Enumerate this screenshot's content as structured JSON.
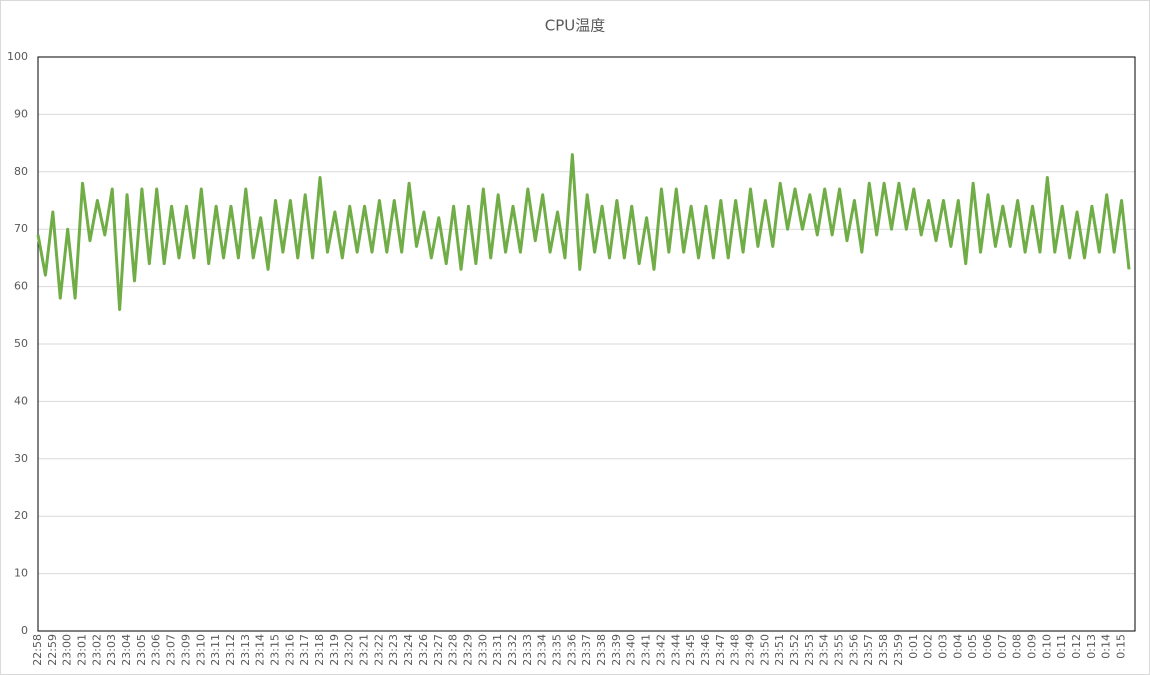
{
  "chart_data": {
    "type": "line",
    "title": "CPU温度",
    "categories": [
      "22:58",
      null,
      "22:59",
      null,
      "23:00",
      null,
      "23:01",
      null,
      "23:02",
      null,
      "23:03",
      null,
      "23:04",
      null,
      "23:05",
      null,
      "23:06",
      null,
      "23:07",
      null,
      "23:09",
      null,
      "23:10",
      null,
      "23:11",
      null,
      "23:12",
      null,
      "23:13",
      null,
      "23:14",
      null,
      "23:15",
      null,
      "23:16",
      null,
      "23:17",
      null,
      "23:18",
      null,
      "23:19",
      null,
      "23:20",
      null,
      "23:21",
      null,
      "23:22",
      null,
      "23:23",
      null,
      "23:24",
      null,
      "23:26",
      null,
      "23:27",
      null,
      "23:28",
      null,
      "23:29",
      null,
      "23:30",
      null,
      "23:31",
      null,
      "23:32",
      null,
      "23:33",
      null,
      "23:34",
      null,
      "23:35",
      null,
      "23:36",
      null,
      "23:37",
      null,
      "23:38",
      null,
      "23:39",
      null,
      "23:40",
      null,
      "23:41",
      null,
      "23:42",
      null,
      "23:44",
      null,
      "23:45",
      null,
      "23:46",
      null,
      "23:47",
      null,
      "23:48",
      null,
      "23:49",
      null,
      "23:50",
      null,
      "23:51",
      null,
      "23:52",
      null,
      "23:53",
      null,
      "23:54",
      null,
      "23:55",
      null,
      "23:56",
      null,
      "23:57",
      null,
      "23:58",
      null,
      "23:59",
      null,
      "0:01",
      null,
      "0:02",
      null,
      "0:03",
      null,
      "0:04",
      null,
      "0:05",
      null,
      "0:06",
      null,
      "0:07",
      null,
      "0:08",
      null,
      "0:09",
      null,
      "0:10",
      null,
      "0:11",
      null,
      "0:12",
      null,
      "0:13",
      null,
      "0:14",
      null,
      "0:15",
      null
    ],
    "values": [
      69,
      62,
      73,
      58,
      70,
      58,
      78,
      68,
      75,
      69,
      77,
      56,
      76,
      61,
      77,
      64,
      77,
      64,
      74,
      65,
      74,
      65,
      77,
      64,
      74,
      65,
      74,
      65,
      77,
      65,
      72,
      63,
      75,
      66,
      75,
      65,
      76,
      65,
      79,
      66,
      73,
      65,
      74,
      66,
      74,
      66,
      75,
      66,
      75,
      66,
      78,
      67,
      73,
      65,
      72,
      64,
      74,
      63,
      74,
      64,
      77,
      65,
      76,
      66,
      74,
      66,
      77,
      68,
      76,
      66,
      73,
      65,
      83,
      63,
      76,
      66,
      74,
      65,
      75,
      65,
      74,
      64,
      72,
      63,
      77,
      66,
      77,
      66,
      74,
      65,
      74,
      65,
      75,
      65,
      75,
      66,
      77,
      67,
      75,
      67,
      78,
      70,
      77,
      70,
      76,
      69,
      77,
      69,
      77,
      68,
      75,
      66,
      78,
      69,
      78,
      70,
      78,
      70,
      77,
      69,
      75,
      68,
      75,
      67,
      75,
      64,
      78,
      66,
      76,
      67,
      74,
      67,
      75,
      66,
      74,
      66,
      79,
      66,
      74,
      65,
      73,
      65,
      74,
      66,
      76,
      66,
      75,
      63
    ],
    "color": "#70ad47",
    "ylim": [
      0,
      100
    ],
    "yticks": [
      0,
      10,
      20,
      30,
      40,
      50,
      60,
      70,
      80,
      90,
      100
    ],
    "grid": true
  }
}
